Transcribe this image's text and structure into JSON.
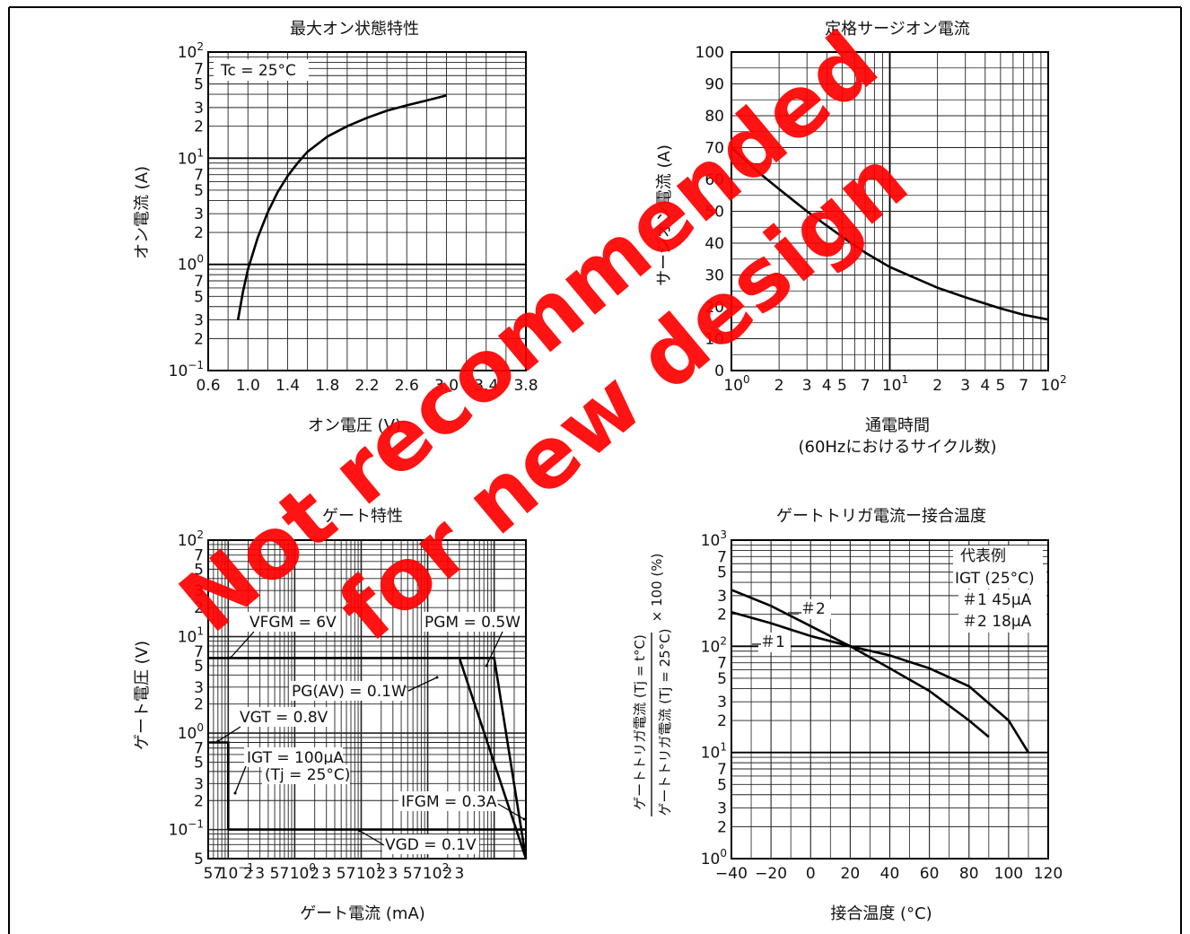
{
  "watermark": {
    "line1": "Not recommended",
    "line2": "for new design",
    "color": "#ff0000"
  },
  "chart_data": [
    {
      "id": "on-state",
      "type": "line",
      "title": "最大オン状態特性",
      "xlabel": "オン電圧 (V)",
      "ylabel": "オン電流 (A)",
      "yscale": "log",
      "xlim": [
        0.6,
        3.8
      ],
      "ylim": [
        0.1,
        100
      ],
      "x_ticks": [
        "0.6",
        "1.0",
        "1.4",
        "1.8",
        "2.2",
        "2.6",
        "3.0",
        "3.4",
        "3.8"
      ],
      "y_ticks": [
        {
          "base": "10",
          "exp": "2"
        },
        {
          "base": "7"
        },
        {
          "base": "5"
        },
        {
          "base": "3"
        },
        {
          "base": "2"
        },
        {
          "base": "10",
          "exp": "1"
        },
        {
          "base": "7"
        },
        {
          "base": "5"
        },
        {
          "base": "3"
        },
        {
          "base": "2"
        },
        {
          "base": "10",
          "exp": "0"
        },
        {
          "base": "7"
        },
        {
          "base": "5"
        },
        {
          "base": "3"
        },
        {
          "base": "2"
        },
        {
          "base": "10",
          "exp": "−1"
        }
      ],
      "annotation": "Tc = 25°C",
      "series": [
        {
          "x": [
            0.9,
            0.95,
            1.0,
            1.1,
            1.2,
            1.3,
            1.4,
            1.5,
            1.6,
            1.8,
            2.0,
            2.2,
            2.4,
            2.6,
            2.8,
            3.0
          ],
          "y": [
            0.3,
            0.55,
            0.9,
            1.8,
            3.1,
            4.8,
            6.8,
            9.0,
            11.5,
            16,
            20,
            24,
            28,
            31.5,
            35,
            39
          ]
        }
      ]
    },
    {
      "id": "surge",
      "type": "line",
      "title": "定格サージオン電流",
      "xlabel": "通電時間",
      "xlabel2": "(60Hzにおけるサイクル数)",
      "ylabel": "サージオン電流 (A)",
      "xscale": "log",
      "xlim": [
        1,
        100
      ],
      "ylim": [
        0,
        100
      ],
      "y_ticks": [
        "0",
        "10",
        "20",
        "30",
        "40",
        "50",
        "60",
        "70",
        "80",
        "90",
        "100"
      ],
      "x_ticks": [
        {
          "base": "10",
          "exp": "0"
        },
        {
          "base": "2"
        },
        {
          "base": "3"
        },
        {
          "base": "4"
        },
        {
          "base": "5"
        },
        {
          "base": "7"
        },
        {
          "base": "10",
          "exp": "1"
        },
        {
          "base": "2"
        },
        {
          "base": "3"
        },
        {
          "base": "4"
        },
        {
          "base": "5"
        },
        {
          "base": "7"
        },
        {
          "base": "10",
          "exp": "2"
        }
      ],
      "series": [
        {
          "x": [
            1,
            1.5,
            2,
            3,
            5,
            7,
            10,
            20,
            30,
            50,
            70,
            100
          ],
          "y": [
            70,
            62,
            57,
            50,
            42,
            37,
            32.5,
            26,
            23,
            19.5,
            17.5,
            16
          ]
        }
      ]
    },
    {
      "id": "gate",
      "type": "line",
      "title": "ゲート特性",
      "xlabel": "ゲート電流 (mA)",
      "ylabel": "ゲート電圧 (V)",
      "xscale": "log",
      "yscale": "log",
      "xlim": [
        0.05,
        3000
      ],
      "ylim": [
        0.05,
        100
      ],
      "y_ticks": [
        {
          "base": "10",
          "exp": "2"
        },
        {
          "base": "7"
        },
        {
          "base": "5"
        },
        {
          "base": "3"
        },
        {
          "base": "2"
        },
        {
          "base": "10",
          "exp": "1"
        },
        {
          "base": "7"
        },
        {
          "base": "5"
        },
        {
          "base": "3"
        },
        {
          "base": "2"
        },
        {
          "base": "10",
          "exp": "0"
        },
        {
          "base": "7"
        },
        {
          "base": "5"
        },
        {
          "base": "3"
        },
        {
          "base": "2"
        },
        {
          "base": "10",
          "exp": "−1"
        },
        {
          "base": "5"
        }
      ],
      "x_ticks": [
        {
          "base": "5"
        },
        {
          "base": "7"
        },
        {
          "base": "10",
          "exp": "−1"
        },
        {
          "base": "2"
        },
        {
          "base": "3"
        },
        {
          "base": "5"
        },
        {
          "base": "7"
        },
        {
          "base": "10",
          "exp": "0"
        },
        {
          "base": "2"
        },
        {
          "base": "3"
        },
        {
          "base": "5"
        },
        {
          "base": "7"
        },
        {
          "base": "10",
          "exp": "1"
        },
        {
          "base": "2"
        },
        {
          "base": "3"
        },
        {
          "base": "5"
        },
        {
          "base": "7"
        },
        {
          "base": "10",
          "exp": "2"
        },
        {
          "base": "2"
        },
        {
          "base": "3"
        }
      ],
      "annotations": {
        "vfgm": "VFGM = 6V",
        "pgm": "PGM = 0.5W",
        "pgav": "PG(AV) = 0.1W",
        "vgt": "VGT = 0.8V",
        "igt": "IGT = 100μA",
        "igt_cond": "(Tj = 25°C)",
        "ifgm": "IFGM = 0.3A",
        "vgd": "VGD = 0.1V"
      },
      "series": [
        {
          "x": [
            0.05,
            1000,
            3000
          ],
          "y": [
            6,
            6,
            0.05
          ]
        },
        {
          "x": [
            300,
            3000
          ],
          "y": [
            6,
            0.05
          ]
        },
        {
          "x": [
            0.05,
            0.1,
            0.1
          ],
          "y": [
            0.8,
            0.8,
            0.1
          ]
        },
        {
          "x": [
            0.1,
            3000
          ],
          "y": [
            0.1,
            0.1
          ]
        }
      ]
    },
    {
      "id": "igt-temp",
      "type": "line",
      "title": "ゲートトリガ電流ー接合温度",
      "xlabel": "接合温度 (°C)",
      "ylabel_top": "ゲートトリガ電流 (Tj = t°C)",
      "ylabel_bottom": "ゲートトリガ電流 (Tj = 25°C)",
      "ylabel_suffix": "× 100 (%)",
      "yscale": "log",
      "xlim": [
        -40,
        120
      ],
      "ylim": [
        1,
        1000
      ],
      "x_ticks": [
        "−40",
        "−20",
        "0",
        "20",
        "40",
        "60",
        "80",
        "100",
        "120"
      ],
      "y_ticks": [
        {
          "base": "10",
          "exp": "3"
        },
        {
          "base": "7"
        },
        {
          "base": "5"
        },
        {
          "base": "3"
        },
        {
          "base": "2"
        },
        {
          "base": "10",
          "exp": "2"
        },
        {
          "base": "7"
        },
        {
          "base": "5"
        },
        {
          "base": "3"
        },
        {
          "base": "2"
        },
        {
          "base": "10",
          "exp": "1"
        },
        {
          "base": "7"
        },
        {
          "base": "5"
        },
        {
          "base": "3"
        },
        {
          "base": "2"
        },
        {
          "base": "10",
          "exp": "0"
        }
      ],
      "legend": {
        "title": "代表例",
        "cond": "IGT (25°C)",
        "item1": "＃1  45μA",
        "item2": "＃2  18μA"
      },
      "labels": {
        "s1": "＃1",
        "s2": "＃2"
      },
      "series": [
        {
          "name": "＃1",
          "x": [
            -40,
            -20,
            0,
            20,
            40,
            60,
            80,
            100,
            110
          ],
          "y": [
            210,
            165,
            125,
            100,
            82,
            62,
            42,
            20,
            10
          ]
        },
        {
          "name": "＃2",
          "x": [
            -40,
            -20,
            0,
            20,
            40,
            60,
            80,
            90
          ],
          "y": [
            340,
            240,
            155,
            100,
            62,
            38,
            20,
            14
          ]
        }
      ]
    }
  ]
}
